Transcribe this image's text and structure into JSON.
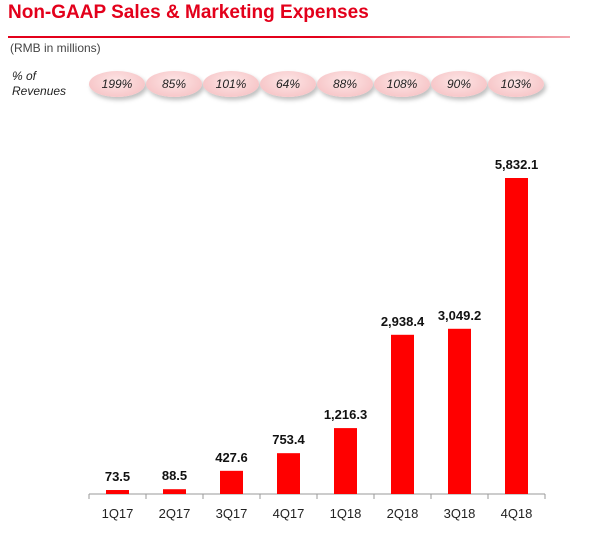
{
  "header": {
    "title": "Non-GAAP Sales & Marketing Expenses",
    "unit_note": "(RMB in millions)",
    "revenue_label_line1": "% of",
    "revenue_label_line2": "Revenues"
  },
  "percent_of_revenues": [
    "199%",
    "85%",
    "101%",
    "64%",
    "88%",
    "108%",
    "90%",
    "103%"
  ],
  "colors": {
    "accent": "#e3001b",
    "bar": "#ff0000",
    "pill": "#f7c8ca"
  },
  "chart_data": {
    "type": "bar",
    "title": "Non-GAAP Sales & Marketing Expenses",
    "xlabel": "",
    "ylabel": "RMB in millions",
    "categories": [
      "1Q17",
      "2Q17",
      "3Q17",
      "4Q17",
      "1Q18",
      "2Q18",
      "3Q18",
      "4Q18"
    ],
    "values": [
      73.5,
      88.5,
      427.6,
      753.4,
      1216.3,
      2938.4,
      3049.2,
      5832.1
    ],
    "value_labels": [
      "73.5",
      "88.5",
      "427.6",
      "753.4",
      "1,216.3",
      "2,938.4",
      "3,049.2",
      "5,832.1"
    ],
    "ylim": [
      0,
      5832.1
    ],
    "grid": false,
    "legend": "none"
  }
}
